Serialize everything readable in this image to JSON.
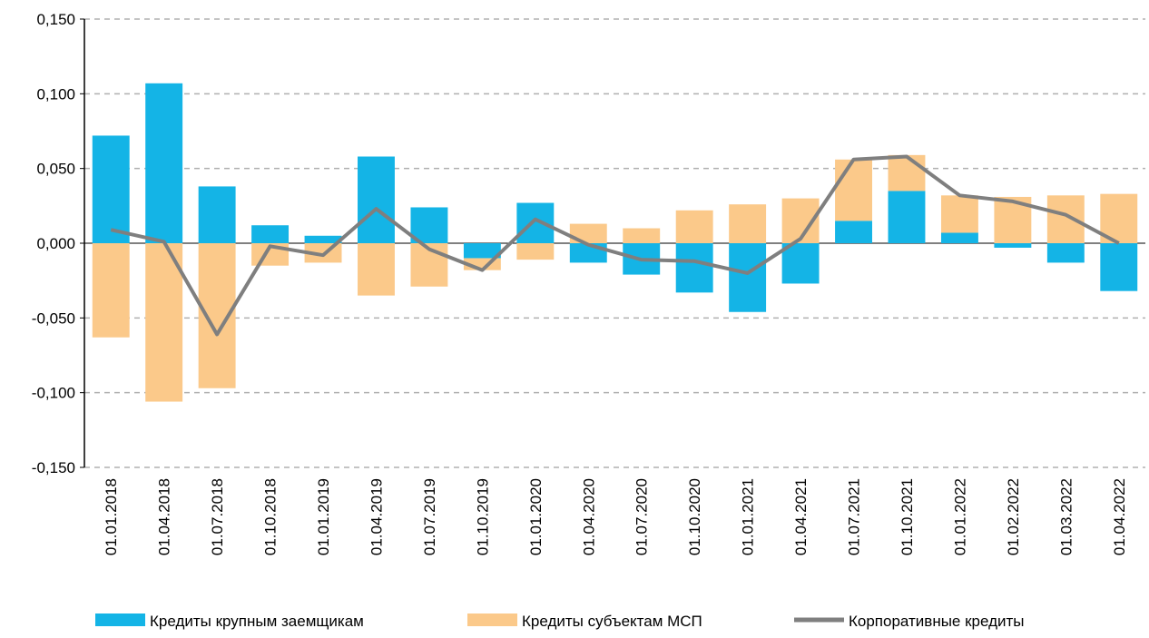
{
  "chart_data": {
    "type": "bar",
    "categories": [
      "01.01.2018",
      "01.04.2018",
      "01.07.2018",
      "01.10.2018",
      "01.01.2019",
      "01.04.2019",
      "01.07.2019",
      "01.10.2019",
      "01.01.2020",
      "01.04.2020",
      "01.07.2020",
      "01.10.2020",
      "01.01.2021",
      "01.04.2021",
      "01.07.2021",
      "01.10.2021",
      "01.01.2022",
      "01.02.2022",
      "01.03.2022",
      "01.04.2022"
    ],
    "series": [
      {
        "name": "Кредиты крупным заемщикам",
        "type": "bar",
        "color": "#14b4e6",
        "values": [
          0.072,
          0.107,
          0.038,
          0.012,
          0.005,
          0.058,
          0.024,
          -0.01,
          0.027,
          -0.013,
          -0.021,
          -0.033,
          -0.046,
          -0.027,
          0.015,
          0.035,
          0.007,
          -0.003,
          -0.013,
          -0.032
        ]
      },
      {
        "name": "Кредиты субъектам МСП",
        "type": "bar",
        "color": "#fbc98a",
        "values": [
          -0.063,
          -0.106,
          -0.097,
          -0.015,
          -0.013,
          -0.035,
          -0.029,
          -0.008,
          -0.011,
          0.013,
          0.01,
          0.022,
          0.026,
          0.03,
          0.041,
          0.024,
          0.025,
          0.031,
          0.032,
          0.033
        ]
      },
      {
        "name": "Корпоративные кредиты",
        "type": "line",
        "color": "#7f7f7f",
        "values": [
          0.009,
          0.001,
          -0.061,
          -0.002,
          -0.008,
          0.023,
          -0.004,
          -0.018,
          0.016,
          -0.001,
          -0.011,
          -0.012,
          -0.02,
          0.003,
          0.056,
          0.058,
          0.032,
          0.028,
          0.019,
          0.0
        ]
      }
    ],
    "stacked": true,
    "ylim": [
      -0.15,
      0.15
    ],
    "yticks": [
      {
        "value": -0.15,
        "label": "-0,150"
      },
      {
        "value": -0.1,
        "label": "-0,100"
      },
      {
        "value": -0.05,
        "label": "-0,050"
      },
      {
        "value": 0,
        "label": "0,000"
      },
      {
        "value": 0.05,
        "label": "0,050"
      },
      {
        "value": 0.1,
        "label": "0,100"
      },
      {
        "value": 0.15,
        "label": "0,150"
      }
    ],
    "grid": true,
    "legend": "bottom"
  }
}
